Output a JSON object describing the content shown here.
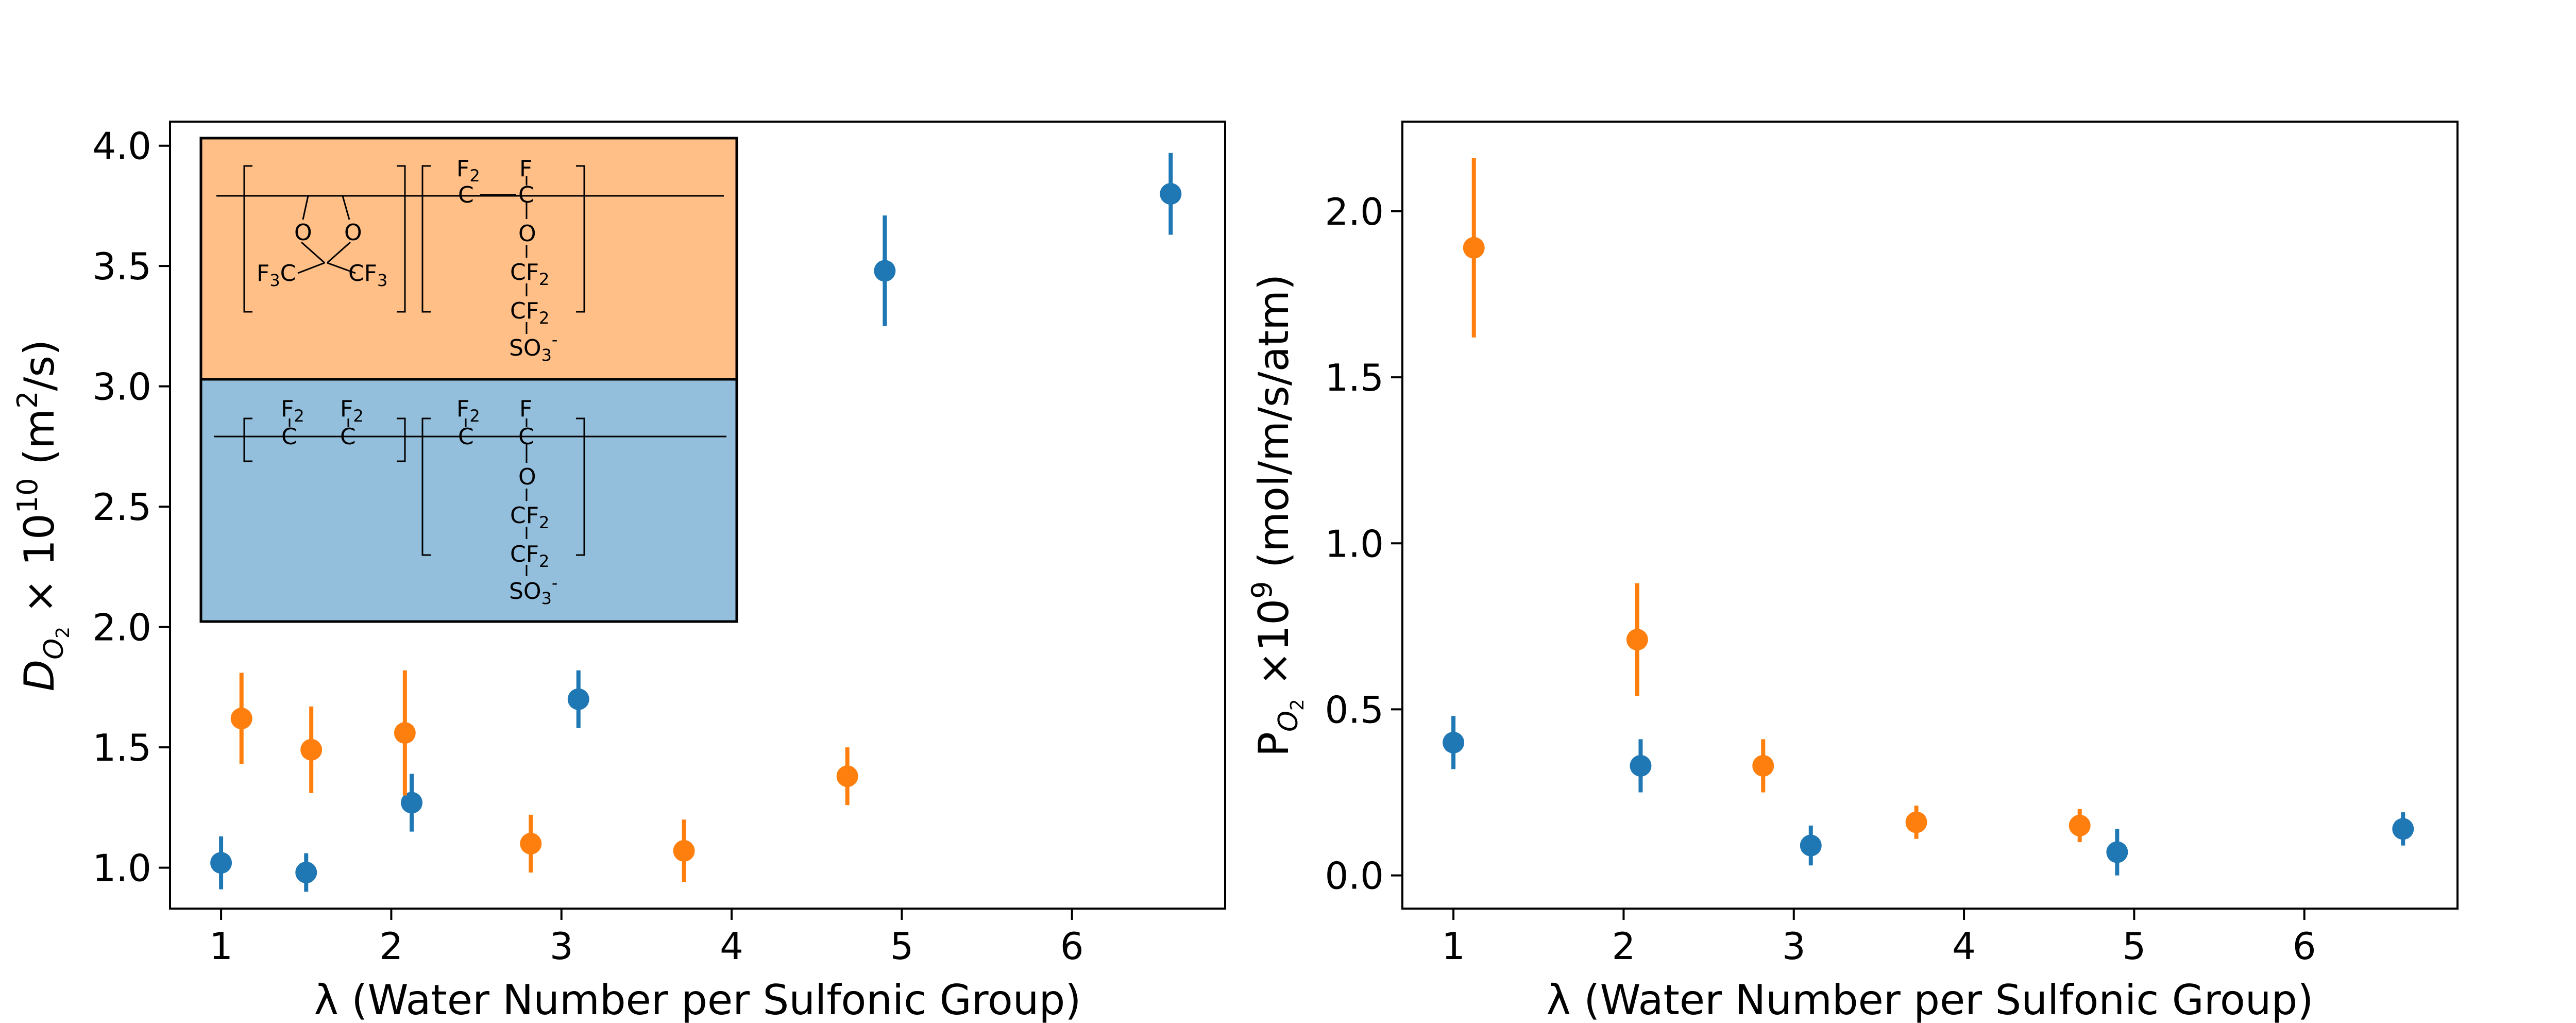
{
  "chart_data": [
    {
      "type": "scatter",
      "xlabel": "λ (Water Number per Sulfonic Group)",
      "ylabel": "D_{O2} × 10^{10} (m^2/s)",
      "ylabel_parts": {
        "base": "D",
        "sub": "O",
        "subsub": "2",
        "times": " × 10",
        "exp": "10",
        "unit_pre": " (m",
        "unit_exp": "2",
        "unit_post": "/s)"
      },
      "xlim": [
        0.7,
        6.9
      ],
      "ylim": [
        0.83,
        4.1
      ],
      "xticks": [
        1,
        2,
        3,
        4,
        5,
        6
      ],
      "yticks": [
        1.0,
        1.5,
        2.0,
        2.5,
        3.0,
        3.5,
        4.0
      ],
      "xtick_labels": [
        "1",
        "2",
        "3",
        "4",
        "5",
        "6"
      ],
      "ytick_labels": [
        "1.0",
        "1.5",
        "2.0",
        "2.5",
        "3.0",
        "3.5",
        "4.0"
      ],
      "series": [
        {
          "color": "#1f77b4",
          "points": [
            {
              "x": 1.0,
              "y": 1.02,
              "err": 0.11
            },
            {
              "x": 1.5,
              "y": 0.98,
              "err": 0.08
            },
            {
              "x": 2.12,
              "y": 1.27,
              "err": 0.12
            },
            {
              "x": 3.1,
              "y": 1.7,
              "err": 0.12
            },
            {
              "x": 4.9,
              "y": 3.48,
              "err": 0.23
            },
            {
              "x": 6.58,
              "y": 3.8,
              "err": 0.17
            }
          ]
        },
        {
          "color": "#ff7f0e",
          "points": [
            {
              "x": 1.12,
              "y": 1.62,
              "err": 0.19
            },
            {
              "x": 1.53,
              "y": 1.49,
              "err": 0.18
            },
            {
              "x": 2.08,
              "y": 1.56,
              "err": 0.26
            },
            {
              "x": 2.82,
              "y": 1.1,
              "err": 0.12
            },
            {
              "x": 3.72,
              "y": 1.07,
              "err": 0.13
            },
            {
              "x": 4.68,
              "y": 1.38,
              "err": 0.12
            }
          ]
        }
      ],
      "inset": {
        "top_color": "#ffbf87",
        "bottom_color": "#93bfdd",
        "top": {
          "bracket1": {
            "o_left": "O",
            "o_right": "O",
            "cf3_left": "F",
            "cf3_left_sub": "3",
            "cf3_left_c": "C",
            "cf3_right_c": "CF",
            "cf3_right_sub": "3"
          },
          "bracket2": {
            "f2": "F",
            "f2_sub": "2",
            "f": "F",
            "c1": "C",
            "c2": "C",
            "o": "O",
            "cf2a": "CF",
            "cf2a_sub": "2",
            "cf2b": "CF",
            "cf2b_sub": "2",
            "so3": "SO",
            "so3_sub": "3",
            "so3_sup": "-"
          }
        },
        "bottom": {
          "bracket1": {
            "f2a": "F",
            "f2a_sub": "2",
            "f2b": "F",
            "f2b_sub": "2",
            "c1": "C",
            "c2": "C"
          },
          "bracket2": {
            "f2": "F",
            "f2_sub": "2",
            "f": "F",
            "c1": "C",
            "c2": "C",
            "o": "O",
            "cf2a": "CF",
            "cf2a_sub": "2",
            "cf2b": "CF",
            "cf2b_sub": "2",
            "so3": "SO",
            "so3_sub": "3",
            "so3_sup": "-"
          }
        }
      }
    },
    {
      "type": "scatter",
      "xlabel": "λ (Water Number per Sulfonic Group)",
      "ylabel": "P_{O2} ×10^{9} (mol/m/s/atm)",
      "ylabel_parts": {
        "base": "P",
        "sub": "O",
        "subsub": "2",
        "times": " ×10",
        "exp": "9",
        "unit_pre": " (mol/m/s/atm)",
        "unit_exp": "",
        "unit_post": ""
      },
      "xlim": [
        0.7,
        6.9
      ],
      "ylim": [
        -0.1,
        2.27
      ],
      "xticks": [
        1,
        2,
        3,
        4,
        5,
        6
      ],
      "yticks": [
        0.0,
        0.5,
        1.0,
        1.5,
        2.0
      ],
      "xtick_labels": [
        "1",
        "2",
        "3",
        "4",
        "5",
        "6"
      ],
      "ytick_labels": [
        "0.0",
        "0.5",
        "1.0",
        "1.5",
        "2.0"
      ],
      "series": [
        {
          "color": "#1f77b4",
          "points": [
            {
              "x": 1.0,
              "y": 0.4,
              "err": 0.08
            },
            {
              "x": 2.1,
              "y": 0.33,
              "err": 0.08
            },
            {
              "x": 3.1,
              "y": 0.09,
              "err": 0.06
            },
            {
              "x": 4.9,
              "y": 0.07,
              "err": 0.07
            },
            {
              "x": 6.58,
              "y": 0.14,
              "err": 0.05
            }
          ]
        },
        {
          "color": "#ff7f0e",
          "points": [
            {
              "x": 1.12,
              "y": 1.89,
              "err": 0.27
            },
            {
              "x": 2.08,
              "y": 0.71,
              "err": 0.17
            },
            {
              "x": 2.82,
              "y": 0.33,
              "err": 0.08
            },
            {
              "x": 3.72,
              "y": 0.16,
              "err": 0.05
            },
            {
              "x": 4.68,
              "y": 0.15,
              "err": 0.05
            }
          ]
        }
      ]
    }
  ]
}
